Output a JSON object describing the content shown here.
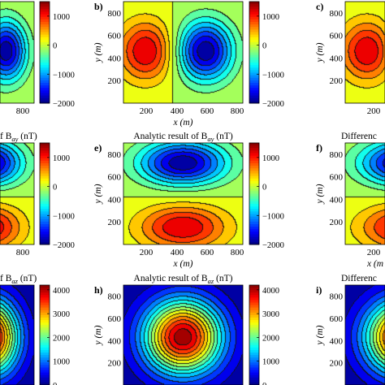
{
  "chart_data": [
    {
      "id": "a",
      "panel_label": "",
      "title": "",
      "type": "heatmap",
      "field": "Bax",
      "xlabel": "",
      "ylabel": "",
      "x_ticks": [
        "800"
      ],
      "y_ticks": [],
      "colorbar_ticks": [
        "1000",
        "0",
        "−1000",
        "−2000"
      ],
      "colorbar_range": [
        -2000,
        1500
      ],
      "xlim": [
        0,
        900
      ],
      "ylim": [
        0,
        900
      ]
    },
    {
      "id": "b",
      "panel_label": "b)",
      "title": "",
      "type": "heatmap",
      "field": "Bax",
      "xlabel": "x (m)",
      "ylabel": "y (m)",
      "x_ticks": [
        "200",
        "400",
        "600",
        "800"
      ],
      "y_ticks": [
        "200",
        "400",
        "600",
        "800"
      ],
      "colorbar_ticks": [
        "1000",
        "0",
        "−1000",
        "−2000"
      ],
      "colorbar_range": [
        -2000,
        1500
      ],
      "xlim": [
        0,
        900
      ],
      "ylim": [
        0,
        900
      ]
    },
    {
      "id": "c",
      "panel_label": "c)",
      "title": "",
      "type": "heatmap",
      "field": "Bax",
      "xlabel": "",
      "ylabel": "y (m)",
      "x_ticks": [
        "200",
        "40"
      ],
      "y_ticks": [
        "200",
        "400",
        "600",
        "800"
      ],
      "colorbar_ticks": [],
      "colorbar_range": [
        -2000,
        1500
      ],
      "xlim": [
        0,
        900
      ],
      "ylim": [
        0,
        900
      ]
    },
    {
      "id": "d",
      "panel_label": "",
      "title_parts": [
        "f B",
        "ay",
        " (nT)"
      ],
      "type": "heatmap",
      "field": "Bay",
      "xlabel": "",
      "ylabel": "",
      "x_ticks": [
        "800"
      ],
      "y_ticks": [],
      "colorbar_ticks": [
        "1000",
        "0",
        "−1000",
        "−2000"
      ],
      "colorbar_range": [
        -2000,
        1500
      ],
      "xlim": [
        0,
        900
      ],
      "ylim": [
        0,
        900
      ]
    },
    {
      "id": "e",
      "panel_label": "e)",
      "title_parts": [
        "Analytic result of B",
        "ay",
        " (nT)"
      ],
      "type": "heatmap",
      "field": "Bay",
      "xlabel": "x (m)",
      "ylabel": "y (m)",
      "x_ticks": [
        "200",
        "400",
        "600",
        "800"
      ],
      "y_ticks": [
        "200",
        "400",
        "600",
        "800"
      ],
      "colorbar_ticks": [
        "1000",
        "0",
        "−1000",
        "−2000"
      ],
      "colorbar_range": [
        -2000,
        1500
      ],
      "xlim": [
        0,
        900
      ],
      "ylim": [
        0,
        900
      ]
    },
    {
      "id": "f",
      "panel_label": "f)",
      "title_parts": [
        "Differenc",
        "",
        ""
      ],
      "type": "heatmap",
      "field": "Bay",
      "xlabel": "x (m",
      "ylabel": "y (m)",
      "x_ticks": [
        "200",
        "40"
      ],
      "y_ticks": [
        "200",
        "400",
        "600",
        "800"
      ],
      "colorbar_ticks": [],
      "colorbar_range": [
        -2000,
        1500
      ],
      "xlim": [
        0,
        900
      ],
      "ylim": [
        0,
        900
      ]
    },
    {
      "id": "g",
      "panel_label": "",
      "title_parts": [
        "f B",
        "az",
        " (nT)"
      ],
      "type": "heatmap",
      "field": "Baz",
      "xlabel": "",
      "ylabel": "",
      "x_ticks": [],
      "y_ticks": [],
      "colorbar_ticks": [
        "4000",
        "3000",
        "2000",
        "1000",
        "0"
      ],
      "colorbar_range": [
        0,
        4200
      ],
      "xlim": [
        0,
        900
      ],
      "ylim": [
        0,
        900
      ]
    },
    {
      "id": "h",
      "panel_label": "h)",
      "title_parts": [
        "Analytic result of B",
        "az",
        " (nT)"
      ],
      "type": "heatmap",
      "field": "Baz",
      "xlabel": "",
      "ylabel": "y (m)",
      "x_ticks": [],
      "y_ticks": [
        "200",
        "400",
        "600",
        "800"
      ],
      "colorbar_ticks": [
        "4000",
        "3000",
        "2000",
        "1000",
        "0"
      ],
      "colorbar_range": [
        0,
        4200
      ],
      "xlim": [
        0,
        900
      ],
      "ylim": [
        0,
        900
      ]
    },
    {
      "id": "i",
      "panel_label": "i)",
      "title_parts": [
        "Differenc",
        "",
        ""
      ],
      "type": "heatmap",
      "field": "Baz",
      "xlabel": "",
      "ylabel": "y (m)",
      "x_ticks": [],
      "y_ticks": [
        "200",
        "400",
        "600",
        "800"
      ],
      "colorbar_ticks": [],
      "colorbar_range": [
        0,
        4200
      ],
      "xlim": [
        0,
        900
      ],
      "ylim": [
        0,
        900
      ]
    }
  ]
}
